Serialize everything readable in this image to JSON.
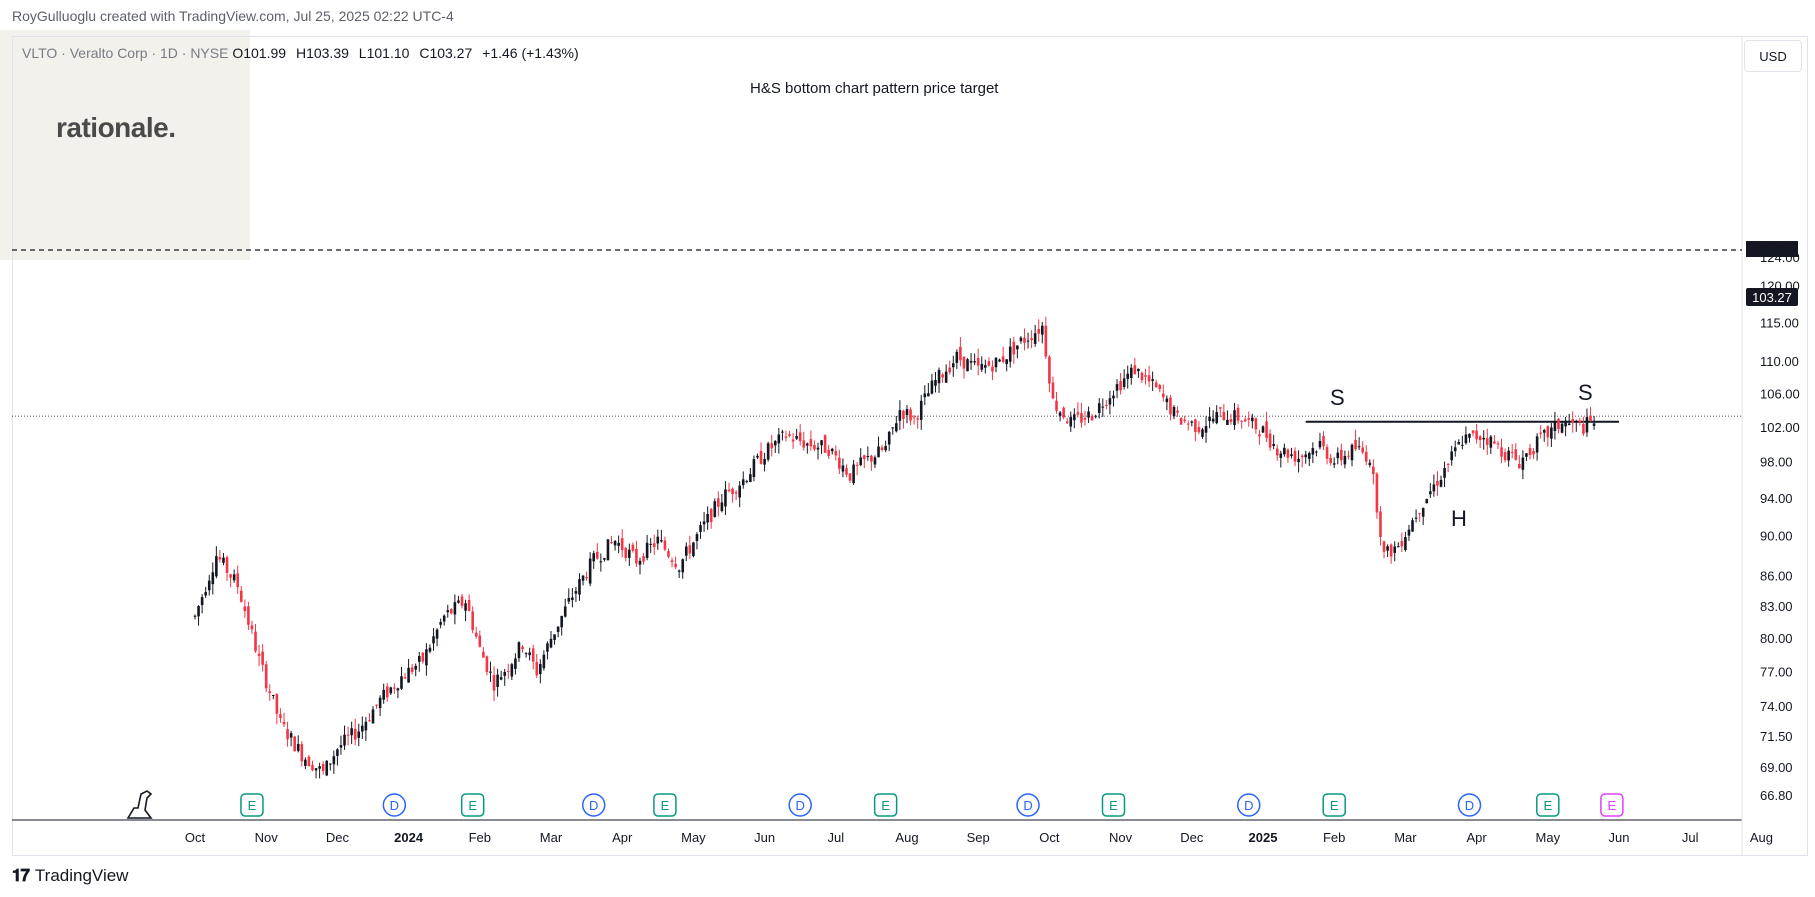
{
  "credit": "RoyGulluoglu created with TradingView.com, Jul 25, 2025 02:22 UTC-4",
  "symbol_bar": {
    "symbol": "VLTO · Veralto Corp · 1D · NYSE",
    "open_label": "O",
    "open": "101.99",
    "high_label": "H",
    "high": "103.39",
    "low_label": "L",
    "low": "101.10",
    "close_label": "C",
    "close": "103.27",
    "change": "+1.46 (+1.43%)"
  },
  "logo_text": "rationale.",
  "currency": "USD",
  "brand": "TradingView",
  "colors": {
    "up": "#131722",
    "down": "#f23645",
    "line": "#131722",
    "grid": "#e0e3eb",
    "earnings": "#089981",
    "dividend": "#2962ff",
    "upcoming": "#e040fb"
  },
  "chart_data": {
    "type": "candlestick",
    "symbol": "VLTO",
    "timeframe": "1D",
    "y_axis": {
      "ticks": [
        "66.80",
        "69.00",
        "71.50",
        "74.00",
        "77.00",
        "80.00",
        "83.00",
        "86.00",
        "90.00",
        "94.00",
        "98.00",
        "102.00",
        "106.00",
        "110.00",
        "115.00",
        "120.00",
        "124.00"
      ],
      "scale": "log",
      "range": [
        65.5,
        127
      ]
    },
    "x_axis": {
      "ticks": [
        "Oct",
        "Nov",
        "Dec",
        "2024",
        "Feb",
        "Mar",
        "Apr",
        "May",
        "Jun",
        "Jul",
        "Aug",
        "Sep",
        "Oct",
        "Nov",
        "Dec",
        "2025",
        "Feb",
        "Mar",
        "Apr",
        "May",
        "Jun",
        "Jul",
        "Aug"
      ]
    },
    "last_price": "103.27",
    "target_price": "125.00",
    "neckline": 102.6,
    "annotations": {
      "target_label": "H&S bottom chart pattern price target",
      "left_shoulder": "S",
      "head": "H",
      "right_shoulder": "S"
    },
    "price_path": [
      [
        0.0,
        82.0
      ],
      [
        0.3,
        88.0
      ],
      [
        0.6,
        85.0
      ],
      [
        0.9,
        78.0
      ],
      [
        1.2,
        72.5
      ],
      [
        1.5,
        70.0
      ],
      [
        1.8,
        68.5
      ],
      [
        2.0,
        70.5
      ],
      [
        2.3,
        72.0
      ],
      [
        2.6,
        74.5
      ],
      [
        2.9,
        76.5
      ],
      [
        3.2,
        78.0
      ],
      [
        3.5,
        82.0
      ],
      [
        3.8,
        83.5
      ],
      [
        4.0,
        79.0
      ],
      [
        4.2,
        76.0
      ],
      [
        4.4,
        77.5
      ],
      [
        4.6,
        79.5
      ],
      [
        4.8,
        77.0
      ],
      [
        5.0,
        80.0
      ],
      [
        5.3,
        84.0
      ],
      [
        5.6,
        87.5
      ],
      [
        5.9,
        89.5
      ],
      [
        6.2,
        87.5
      ],
      [
        6.5,
        89.5
      ],
      [
        6.8,
        87.0
      ],
      [
        7.1,
        90.5
      ],
      [
        7.4,
        94.0
      ],
      [
        7.7,
        96.0
      ],
      [
        8.0,
        99.0
      ],
      [
        8.3,
        101.0
      ],
      [
        8.6,
        100.0
      ],
      [
        8.9,
        99.5
      ],
      [
        9.2,
        96.5
      ],
      [
        9.4,
        98.0
      ],
      [
        9.7,
        99.5
      ],
      [
        9.9,
        104.0
      ],
      [
        10.1,
        103.0
      ],
      [
        10.4,
        107.5
      ],
      [
        10.7,
        110.5
      ],
      [
        11.0,
        109.0
      ],
      [
        11.3,
        110.0
      ],
      [
        11.6,
        112.5
      ],
      [
        11.9,
        114.5
      ],
      [
        12.05,
        105.0
      ],
      [
        12.3,
        102.5
      ],
      [
        12.6,
        103.5
      ],
      [
        12.9,
        106.5
      ],
      [
        13.2,
        109.0
      ],
      [
        13.5,
        106.5
      ],
      [
        13.8,
        103.0
      ],
      [
        14.1,
        102.0
      ],
      [
        14.4,
        103.5
      ],
      [
        14.7,
        103.0
      ],
      [
        15.0,
        101.5
      ],
      [
        15.2,
        99.5
      ],
      [
        15.5,
        98.5
      ],
      [
        15.8,
        100.0
      ],
      [
        16.0,
        98.0
      ],
      [
        16.3,
        99.5
      ],
      [
        16.5,
        98.5
      ],
      [
        16.7,
        88.0
      ],
      [
        16.9,
        89.0
      ],
      [
        17.2,
        93.0
      ],
      [
        17.5,
        96.5
      ],
      [
        17.8,
        100.5
      ],
      [
        18.1,
        101.0
      ],
      [
        18.4,
        99.0
      ],
      [
        18.6,
        98.0
      ],
      [
        18.9,
        100.5
      ],
      [
        19.2,
        102.5
      ],
      [
        19.5,
        102.0
      ],
      [
        19.7,
        103.0
      ]
    ],
    "events": {
      "earnings": [
        0.8,
        3.9,
        6.6,
        9.7,
        12.9,
        16.0,
        19.0
      ],
      "dividends": [
        2.8,
        5.6,
        8.5,
        11.7,
        14.8,
        17.9
      ],
      "upcoming_earnings": [
        19.9
      ]
    }
  }
}
